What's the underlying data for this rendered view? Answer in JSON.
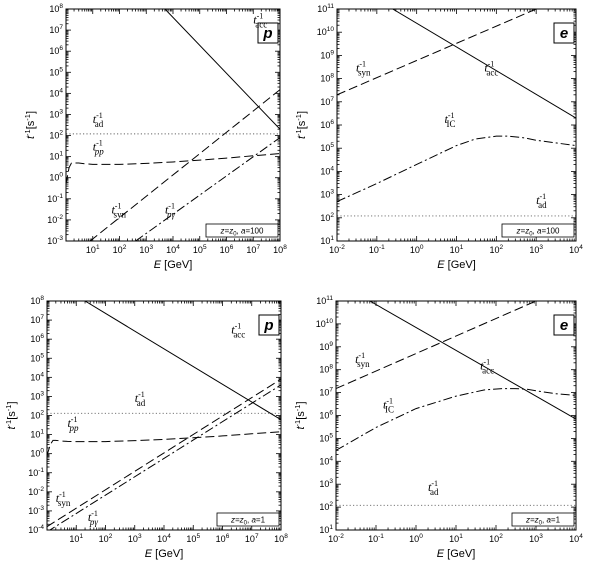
{
  "chart_data": [
    {
      "panel": "p",
      "type": "line",
      "note": "z=z_0, a=100",
      "note_parts": [
        "z=z",
        "0",
        ", ",
        "a",
        "=100"
      ],
      "xlabel": {
        "sym": "E",
        "unit": " [GeV]"
      },
      "ylabel": {
        "sym": "t",
        "sup": "-1",
        "unit": "[s",
        "unit_sup": "-1",
        "unit_end": "]"
      },
      "xscale": "log",
      "yscale": "log",
      "xlim": [
        1,
        100000000
      ],
      "ylim": [
        0.001,
        100000000
      ],
      "xticks": [
        {
          "e": 1,
          "label": "10",
          "sup": "1"
        },
        {
          "e": 2,
          "label": "10",
          "sup": "2"
        },
        {
          "e": 3,
          "label": "10",
          "sup": "3"
        },
        {
          "e": 4,
          "label": "10",
          "sup": "4"
        },
        {
          "e": 5,
          "label": "10",
          "sup": "5"
        },
        {
          "e": 6,
          "label": "10",
          "sup": "6"
        },
        {
          "e": 7,
          "label": "10",
          "sup": "7"
        },
        {
          "e": 8,
          "label": "10",
          "sup": "8"
        }
      ],
      "yticks": [
        {
          "e": -3,
          "label": "10",
          "sup": "-3"
        },
        {
          "e": -2,
          "label": "10",
          "sup": "-2"
        },
        {
          "e": -1,
          "label": "10",
          "sup": "-1"
        },
        {
          "e": 0,
          "label": "10",
          "sup": "0"
        },
        {
          "e": 1,
          "label": "10",
          "sup": "1"
        },
        {
          "e": 2,
          "label": "10",
          "sup": "2"
        },
        {
          "e": 3,
          "label": "10",
          "sup": "3"
        },
        {
          "e": 4,
          "label": "10",
          "sup": "4"
        },
        {
          "e": 5,
          "label": "10",
          "sup": "5"
        },
        {
          "e": 6,
          "label": "10",
          "sup": "6"
        },
        {
          "e": 7,
          "label": "10",
          "sup": "7"
        },
        {
          "e": 8,
          "label": "10",
          "sup": "8"
        }
      ],
      "series": [
        {
          "key": "acc",
          "style": "solid",
          "x": [
            5000,
            100000000
          ],
          "y": [
            100000000,
            200
          ]
        },
        {
          "key": "ad",
          "style": "dotted",
          "x": [
            1,
            100000000
          ],
          "y": [
            120,
            120
          ]
        },
        {
          "key": "pp",
          "style": "dashed",
          "x": [
            1,
            1.3,
            1.6,
            2,
            3,
            5,
            10,
            100,
            1000,
            10000,
            100000,
            1000000,
            10000000,
            100000000
          ],
          "y": [
            0.5,
            3,
            5,
            5,
            5,
            4.6,
            4.3,
            4.3,
            4.8,
            5.6,
            6.8,
            8.5,
            11,
            14
          ]
        },
        {
          "key": "syn",
          "style": "dashed",
          "x": [
            8,
            100000000
          ],
          "y": [
            0.001,
            15000
          ]
        },
        {
          "key": "pg",
          "style": "dashdot",
          "x": [
            400,
            100000000
          ],
          "y": [
            0.001,
            80
          ]
        }
      ],
      "labels": [
        {
          "key": "acc",
          "sym": "t",
          "sup": "-1",
          "sub": "acc",
          "at": [
            10000000,
            20000000
          ]
        },
        {
          "key": "ad",
          "sym": "t",
          "sup": "-1",
          "sub": "ad",
          "at": [
            10,
            400
          ]
        },
        {
          "key": "pp",
          "sym": "t",
          "sup": "-1",
          "sub": "pp",
          "at": [
            10,
            20
          ]
        },
        {
          "key": "syn",
          "sym": "t",
          "sup": "-1",
          "sub": "syn",
          "at": [
            50,
            0.02
          ]
        },
        {
          "key": "pg",
          "sym": "t",
          "sup": "-1",
          "sub": "pγ",
          "at": [
            5000,
            0.02
          ]
        }
      ]
    },
    {
      "panel": "e",
      "type": "line",
      "note": "z=z_0, a=100",
      "note_parts": [
        "z=z",
        "0",
        ", ",
        "a",
        "=100"
      ],
      "xlabel": {
        "sym": "E",
        "unit": " [GeV]"
      },
      "ylabel": {
        "sym": "t",
        "sup": "-1",
        "unit": "[s",
        "unit_sup": "-1",
        "unit_end": "]"
      },
      "xscale": "log",
      "yscale": "log",
      "xlim": [
        0.01,
        10000
      ],
      "ylim": [
        10,
        100000000000
      ],
      "xticks": [
        {
          "e": -2,
          "label": "10",
          "sup": "-2"
        },
        {
          "e": -1,
          "label": "10",
          "sup": "-1"
        },
        {
          "e": 0,
          "label": "10",
          "sup": "0"
        },
        {
          "e": 1,
          "label": "10",
          "sup": "1"
        },
        {
          "e": 2,
          "label": "10",
          "sup": "2"
        },
        {
          "e": 3,
          "label": "10",
          "sup": "3"
        },
        {
          "e": 4,
          "label": "10",
          "sup": "4"
        }
      ],
      "yticks": [
        {
          "e": 1,
          "label": "10",
          "sup": "1"
        },
        {
          "e": 2,
          "label": "10",
          "sup": "2"
        },
        {
          "e": 3,
          "label": "10",
          "sup": "3"
        },
        {
          "e": 4,
          "label": "10",
          "sup": "4"
        },
        {
          "e": 5,
          "label": "10",
          "sup": "5"
        },
        {
          "e": 6,
          "label": "10",
          "sup": "6"
        },
        {
          "e": 7,
          "label": "10",
          "sup": "7"
        },
        {
          "e": 8,
          "label": "10",
          "sup": "8"
        },
        {
          "e": 9,
          "label": "10",
          "sup": "9"
        },
        {
          "e": 10,
          "label": "10",
          "sup": "10"
        },
        {
          "e": 11,
          "label": "10",
          "sup": "11"
        }
      ],
      "series": [
        {
          "key": "acc",
          "style": "solid",
          "x": [
            0.25,
            10000
          ],
          "y": [
            100000000000,
            2000000
          ]
        },
        {
          "key": "ad",
          "style": "dotted",
          "x": [
            0.01,
            10000
          ],
          "y": [
            120,
            120
          ]
        },
        {
          "key": "syn",
          "style": "dashed",
          "x": [
            0.01,
            1000
          ],
          "y": [
            20000000,
            100000000000
          ]
        },
        {
          "key": "ic",
          "style": "dashdot",
          "x": [
            0.01,
            0.1,
            1,
            10,
            30,
            100,
            200,
            500,
            1000,
            3000,
            10000
          ],
          "y": [
            500,
            3000,
            20000,
            130000,
            250000,
            330000,
            330000,
            280000,
            220000,
            170000,
            130000
          ]
        }
      ],
      "labels": [
        {
          "key": "acc",
          "sym": "t",
          "sup": "-1",
          "sub": "acc",
          "at": [
            50,
            200000000
          ]
        },
        {
          "key": "syn",
          "sym": "t",
          "sup": "-1",
          "sub": "syn",
          "at": [
            0.03,
            200000000
          ]
        },
        {
          "key": "ic",
          "sym": "t",
          "sup": "-1",
          "sub": "IC",
          "at": [
            5,
            1200000
          ]
        },
        {
          "key": "ad",
          "sym": "t",
          "sup": "-1",
          "sub": "ad",
          "at": [
            1000,
            400
          ]
        }
      ]
    },
    {
      "panel": "p",
      "type": "line",
      "note": "z=z_0, a=1",
      "note_parts": [
        "z=z",
        "0",
        ", ",
        "a",
        "=1"
      ],
      "xlabel": {
        "sym": "E",
        "unit": " [GeV]"
      },
      "ylabel": {
        "sym": "t",
        "sup": "-1",
        "unit": "[s",
        "unit_sup": "-1",
        "unit_end": "]"
      },
      "xscale": "log",
      "yscale": "log",
      "xlim": [
        1,
        100000000
      ],
      "ylim": [
        0.0001,
        100000000
      ],
      "xticks": [
        {
          "e": 1,
          "label": "10",
          "sup": "1"
        },
        {
          "e": 2,
          "label": "10",
          "sup": "2"
        },
        {
          "e": 3,
          "label": "10",
          "sup": "3"
        },
        {
          "e": 4,
          "label": "10",
          "sup": "4"
        },
        {
          "e": 5,
          "label": "10",
          "sup": "5"
        },
        {
          "e": 6,
          "label": "10",
          "sup": "6"
        },
        {
          "e": 7,
          "label": "10",
          "sup": "7"
        },
        {
          "e": 8,
          "label": "10",
          "sup": "8"
        }
      ],
      "yticks": [
        {
          "e": -4,
          "label": "10",
          "sup": "-4"
        },
        {
          "e": -3,
          "label": "10",
          "sup": "-3"
        },
        {
          "e": -2,
          "label": "10",
          "sup": "-2"
        },
        {
          "e": -1,
          "label": "10",
          "sup": "-1"
        },
        {
          "e": 0,
          "label": "10",
          "sup": "0"
        },
        {
          "e": 1,
          "label": "10",
          "sup": "1"
        },
        {
          "e": 2,
          "label": "10",
          "sup": "2"
        },
        {
          "e": 3,
          "label": "10",
          "sup": "3"
        },
        {
          "e": 4,
          "label": "10",
          "sup": "4"
        },
        {
          "e": 5,
          "label": "10",
          "sup": "5"
        },
        {
          "e": 6,
          "label": "10",
          "sup": "6"
        },
        {
          "e": 7,
          "label": "10",
          "sup": "7"
        },
        {
          "e": 8,
          "label": "10",
          "sup": "8"
        }
      ],
      "series": [
        {
          "key": "acc",
          "style": "solid",
          "x": [
            20,
            100000000
          ],
          "y": [
            100000000,
            60
          ]
        },
        {
          "key": "ad",
          "style": "dotted",
          "x": [
            1,
            100000000
          ],
          "y": [
            130,
            130
          ]
        },
        {
          "key": "pp",
          "style": "dashed",
          "x": [
            1,
            1.3,
            1.6,
            2,
            3,
            5,
            10,
            100,
            1000,
            10000,
            100000,
            1000000,
            10000000,
            100000000
          ],
          "y": [
            0.8,
            3,
            5,
            5,
            4.6,
            4.4,
            4.3,
            4.3,
            4.8,
            5.6,
            6.8,
            8.5,
            11,
            14
          ]
        },
        {
          "key": "syn",
          "style": "dashed",
          "x": [
            1,
            100000000
          ],
          "y": [
            0.00015,
            8000
          ]
        },
        {
          "key": "pg",
          "style": "dashdot",
          "x": [
            1,
            100000000
          ],
          "y": [
            8e-05,
            4000
          ]
        }
      ],
      "labels": [
        {
          "key": "acc",
          "sym": "t",
          "sup": "-1",
          "sub": "acc",
          "at": [
            2000000,
            2000000
          ]
        },
        {
          "key": "ad",
          "sym": "t",
          "sup": "-1",
          "sub": "ad",
          "at": [
            1000,
            500
          ]
        },
        {
          "key": "pp",
          "sym": "t",
          "sup": "-1",
          "sub": "pp",
          "at": [
            5,
            25
          ]
        },
        {
          "key": "syn",
          "sym": "t",
          "sup": "-1",
          "sub": "syn",
          "at": [
            2,
            0.003
          ]
        },
        {
          "key": "pg",
          "sym": "t",
          "sup": "-1",
          "sub": "pγ",
          "at": [
            25,
            0.0003
          ]
        }
      ]
    },
    {
      "panel": "e",
      "type": "line",
      "note": "z=z_0, a=1",
      "note_parts": [
        "z=z",
        "0",
        ", ",
        "a",
        "=1"
      ],
      "xlabel": {
        "sym": "E",
        "unit": " [GeV]"
      },
      "ylabel": {
        "sym": "t",
        "sup": "-1",
        "unit": "[s",
        "unit_sup": "-1",
        "unit_end": "]"
      },
      "xscale": "log",
      "yscale": "log",
      "xlim": [
        0.01,
        10000
      ],
      "ylim": [
        10,
        100000000000
      ],
      "xticks": [
        {
          "e": -2,
          "label": "10",
          "sup": "-2"
        },
        {
          "e": -1,
          "label": "10",
          "sup": "-1"
        },
        {
          "e": 0,
          "label": "10",
          "sup": "0"
        },
        {
          "e": 1,
          "label": "10",
          "sup": "1"
        },
        {
          "e": 2,
          "label": "10",
          "sup": "2"
        },
        {
          "e": 3,
          "label": "10",
          "sup": "3"
        },
        {
          "e": 4,
          "label": "10",
          "sup": "4"
        }
      ],
      "yticks": [
        {
          "e": 1,
          "label": "10",
          "sup": "1"
        },
        {
          "e": 2,
          "label": "10",
          "sup": "2"
        },
        {
          "e": 3,
          "label": "10",
          "sup": "3"
        },
        {
          "e": 4,
          "label": "10",
          "sup": "4"
        },
        {
          "e": 5,
          "label": "10",
          "sup": "5"
        },
        {
          "e": 6,
          "label": "10",
          "sup": "6"
        },
        {
          "e": 7,
          "label": "10",
          "sup": "7"
        },
        {
          "e": 8,
          "label": "10",
          "sup": "8"
        },
        {
          "e": 9,
          "label": "10",
          "sup": "9"
        },
        {
          "e": 10,
          "label": "10",
          "sup": "10"
        },
        {
          "e": 11,
          "label": "10",
          "sup": "11"
        }
      ],
      "series": [
        {
          "key": "acc",
          "style": "solid",
          "x": [
            0.07,
            10000
          ],
          "y": [
            100000000000,
            700000
          ]
        },
        {
          "key": "ad",
          "style": "dotted",
          "x": [
            0.01,
            10000
          ],
          "y": [
            120,
            120
          ]
        },
        {
          "key": "syn",
          "style": "dashed",
          "x": [
            0.01,
            1000
          ],
          "y": [
            15000000,
            100000000000
          ]
        },
        {
          "key": "ic",
          "style": "dashdot",
          "x": [
            0.01,
            0.1,
            1,
            10,
            50,
            150,
            300,
            600,
            1000,
            3000,
            10000
          ],
          "y": [
            30000,
            300000,
            2000000,
            7000000,
            13000000,
            15000000,
            15000000,
            14000000,
            12000000,
            9000000,
            7500000
          ]
        }
      ],
      "labels": [
        {
          "key": "syn",
          "sym": "t",
          "sup": "-1",
          "sub": "syn",
          "at": [
            0.03,
            200000000
          ]
        },
        {
          "key": "acc",
          "sym": "t",
          "sup": "-1",
          "sub": "acc",
          "at": [
            40,
            100000000
          ]
        },
        {
          "key": "ic",
          "sym": "t",
          "sup": "-1",
          "sub": "IC",
          "at": [
            0.15,
            2000000
          ]
        },
        {
          "key": "ad",
          "sym": "t",
          "sup": "-1",
          "sub": "ad",
          "at": [
            2,
            500
          ]
        }
      ]
    }
  ]
}
